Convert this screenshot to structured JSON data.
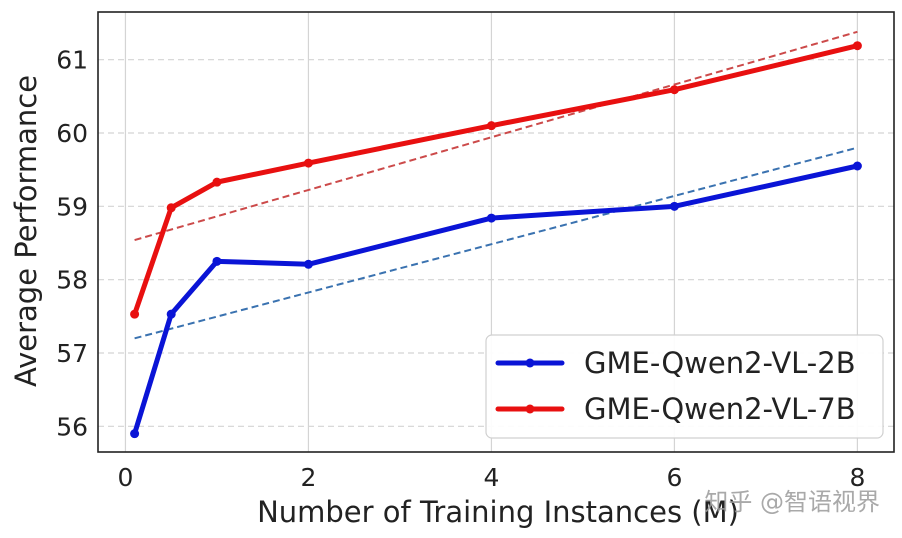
{
  "chart_data": {
    "type": "line",
    "xlabel": "Number of Training Instances (M)",
    "ylabel": "Average Performance",
    "xlim": [
      -0.3,
      8.4
    ],
    "ylim": [
      55.65,
      61.65
    ],
    "x_ticks": [
      0,
      2,
      4,
      6,
      8
    ],
    "y_ticks": [
      56,
      57,
      58,
      59,
      60,
      61
    ],
    "grid": true,
    "legend_position": "bottom-right",
    "series": [
      {
        "name": "GME-Qwen2-VL-2B",
        "color": "#0a14d6",
        "x": [
          0.1,
          0.5,
          1,
          2,
          4,
          6,
          8
        ],
        "y": [
          55.9,
          57.53,
          58.25,
          58.21,
          58.84,
          59.0,
          59.55
        ],
        "trend": {
          "x": [
            0.1,
            8
          ],
          "y": [
            57.2,
            59.8
          ],
          "color": "#3a72b0"
        }
      },
      {
        "name": "GME-Qwen2-VL-7B",
        "color": "#e81010",
        "x": [
          0.1,
          0.5,
          1,
          2,
          4,
          6,
          8
        ],
        "y": [
          57.53,
          58.98,
          59.33,
          59.59,
          60.1,
          60.59,
          61.19
        ],
        "trend": {
          "x": [
            0.1,
            8
          ],
          "y": [
            58.54,
            61.38
          ],
          "color": "#cc4a4a"
        }
      }
    ]
  },
  "watermark": "知乎 @智语视界"
}
